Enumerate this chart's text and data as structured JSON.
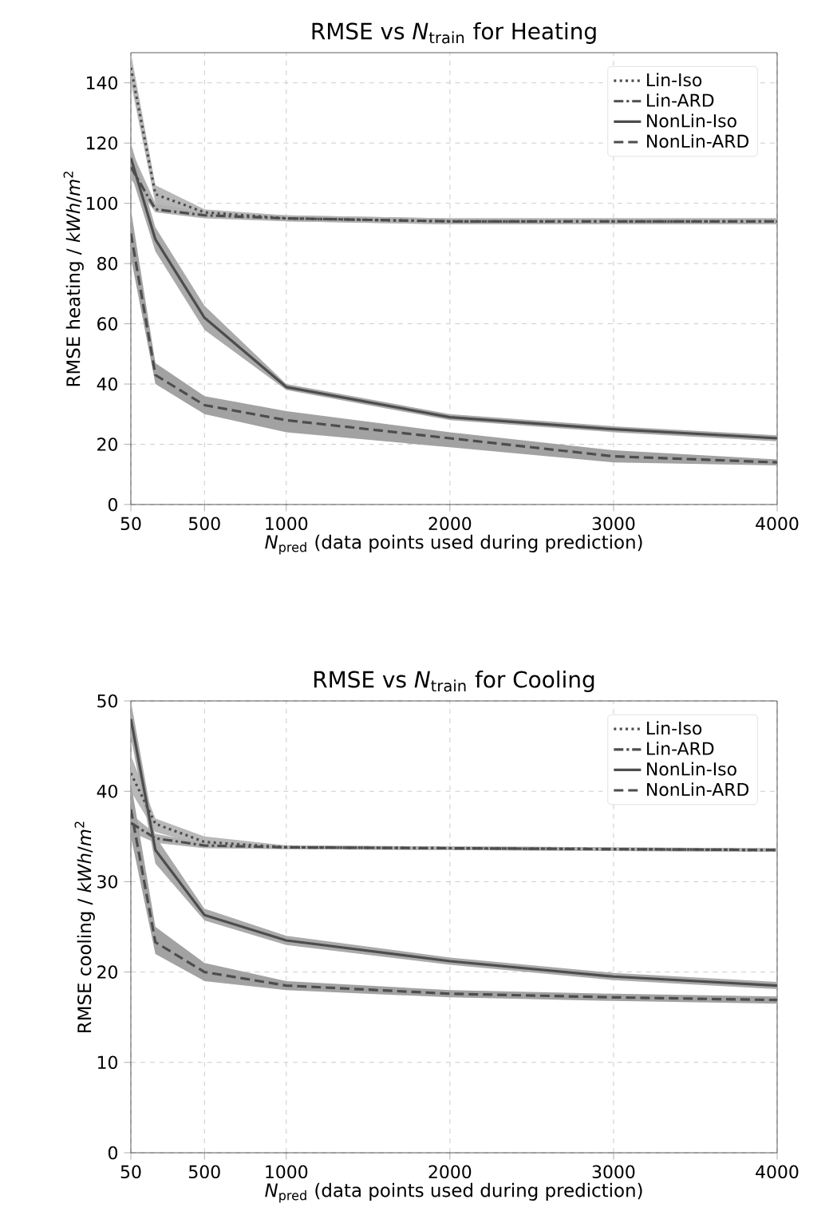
{
  "chart_data": [
    {
      "type": "line",
      "title": "RMSE vs *N*$_{train}$ for Heating",
      "xlabel": "*N*$_{pred}$ (data points used during prediction)",
      "ylabel": "RMSE heating / *kWh*/*m*$^{2}$",
      "x": [
        50,
        200,
        500,
        1000,
        2000,
        3000,
        4000
      ],
      "xlim": [
        50,
        4000
      ],
      "xticks": [
        50,
        500,
        1000,
        2000,
        3000,
        4000
      ],
      "ylim": [
        0,
        150
      ],
      "yticks": [
        0,
        20,
        40,
        60,
        80,
        100,
        120,
        140
      ],
      "grid": true,
      "legend": "top right",
      "series": [
        {
          "name": "Lin-Iso",
          "color": "#4d4d4d",
          "line_style": "dotted",
          "values": [
            145,
            103,
            97,
            95,
            94,
            94,
            94
          ],
          "lower": [
            140,
            100,
            96,
            94,
            93,
            93,
            93
          ],
          "upper": [
            150,
            106,
            98,
            96,
            95,
            95,
            95
          ]
        },
        {
          "name": "Lin-ARD",
          "color": "#4d4d4d",
          "line_style": "dashdot",
          "values": [
            112,
            98,
            96,
            95,
            94,
            94,
            94
          ],
          "lower": [
            108,
            97,
            95,
            94,
            93,
            93,
            93
          ],
          "upper": [
            118,
            100,
            97,
            96,
            95,
            95,
            95
          ]
        },
        {
          "name": "NonLin-Iso",
          "color": "#4d4d4d",
          "line_style": "solid",
          "values": [
            115,
            88,
            62,
            39,
            29,
            25,
            22
          ],
          "lower": [
            110,
            84,
            58,
            38,
            28,
            24,
            21
          ],
          "upper": [
            120,
            92,
            66,
            40,
            30,
            26,
            23
          ]
        },
        {
          "name": "NonLin-ARD",
          "color": "#4d4d4d",
          "line_style": "dashed",
          "values": [
            90,
            43,
            33,
            28,
            22,
            16,
            14
          ],
          "lower": [
            82,
            40,
            30,
            24,
            19,
            14,
            13
          ],
          "upper": [
            98,
            47,
            36,
            31,
            24,
            18,
            15
          ]
        }
      ]
    },
    {
      "type": "line",
      "title": "RMSE vs *N*$_{train}$ for Cooling",
      "xlabel": "*N*$_{pred}$ (data points used during prediction)",
      "ylabel": "RMSE cooling / *kWh*/*m*$^{2}$",
      "x": [
        50,
        200,
        500,
        1000,
        2000,
        3000,
        4000
      ],
      "xlim": [
        50,
        4000
      ],
      "xticks": [
        50,
        500,
        1000,
        2000,
        3000,
        4000
      ],
      "ylim": [
        0,
        50
      ],
      "yticks": [
        0,
        10,
        20,
        30,
        40,
        50
      ],
      "grid": true,
      "legend": "top right",
      "series": [
        {
          "name": "Lin-Iso",
          "color": "#4d4d4d",
          "line_style": "dotted",
          "values": [
            42,
            36.4,
            34.4,
            33.8,
            33.7,
            33.6,
            33.5
          ],
          "lower": [
            40,
            35.5,
            34,
            33.6,
            33.5,
            33.4,
            33.3
          ],
          "upper": [
            44,
            37,
            35,
            34,
            33.9,
            33.8,
            33.7
          ]
        },
        {
          "name": "Lin-ARD",
          "color": "#4d4d4d",
          "line_style": "dashdot",
          "values": [
            36.5,
            34.8,
            34,
            33.8,
            33.7,
            33.6,
            33.5
          ],
          "lower": [
            35.5,
            34.3,
            33.7,
            33.6,
            33.5,
            33.4,
            33.3
          ],
          "upper": [
            37.5,
            35.3,
            34.3,
            34,
            33.9,
            33.8,
            33.7
          ]
        },
        {
          "name": "NonLin-Iso",
          "color": "#4d4d4d",
          "line_style": "solid",
          "values": [
            48,
            33.5,
            26.3,
            23.5,
            21.2,
            19.5,
            18.5
          ],
          "lower": [
            46,
            32,
            25.7,
            23,
            20.8,
            19.1,
            18.1
          ],
          "upper": [
            50,
            35,
            27,
            24,
            21.6,
            19.9,
            18.9
          ]
        },
        {
          "name": "NonLin-ARD",
          "color": "#4d4d4d",
          "line_style": "dashed",
          "values": [
            38,
            23.3,
            20,
            18.5,
            17.6,
            17.2,
            16.9
          ],
          "lower": [
            35,
            22,
            19,
            18,
            17.2,
            16.8,
            16.5
          ],
          "upper": [
            41,
            25,
            21,
            19,
            18,
            17.6,
            17.3
          ]
        }
      ]
    }
  ]
}
